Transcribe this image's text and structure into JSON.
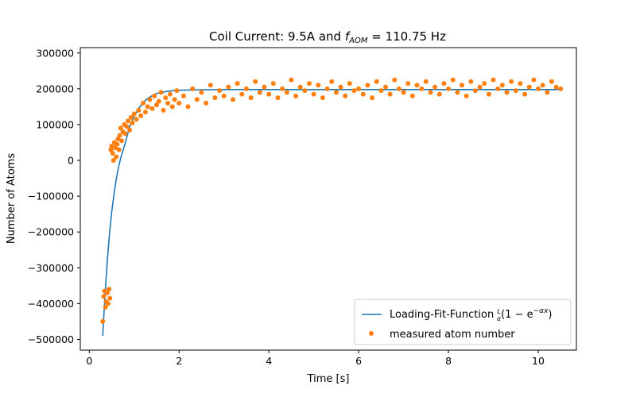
{
  "chart_data": {
    "type": "scatter",
    "title_main": "Coil Current: 9.5A and ",
    "title_var": "f",
    "title_sub": "AOM",
    "title_rest": " = 110.75 Hz",
    "xlabel": "Time [s]",
    "ylabel": "Number of Atoms",
    "xlim": [
      -0.2,
      10.85
    ],
    "ylim": [
      -530000,
      315000
    ],
    "xticks": [
      0,
      2,
      4,
      6,
      8,
      10
    ],
    "yticks": [
      -500000,
      -400000,
      -300000,
      -200000,
      -100000,
      0,
      100000,
      200000,
      300000
    ],
    "ytick_labels": [
      "−500000",
      "−400000",
      "−300000",
      "−200000",
      "−100000",
      "0",
      "100000",
      "200000",
      "300000"
    ],
    "grid": false,
    "legend_position": "lower right",
    "series": [
      {
        "name": "Loading-Fit-Function",
        "legend_prefix": "Loading-Fit-Function ",
        "legend_formula": "(1 − e",
        "legend_exp": "−αx",
        "legend_frac_num": "L",
        "legend_frac_den": "α",
        "kind": "line",
        "color": "#1f77b4",
        "x": [
          0.3,
          0.35,
          0.4,
          0.45,
          0.5,
          0.55,
          0.6,
          0.65,
          0.7,
          0.8,
          0.9,
          1.0,
          1.1,
          1.2,
          1.3,
          1.4,
          1.5,
          1.6,
          1.8,
          2.0,
          2.5,
          3.0,
          4.0,
          5.0,
          6.0,
          7.0,
          8.0,
          9.0,
          10.0,
          10.5
        ],
        "y": [
          -490000,
          -375000,
          -282000,
          -206000,
          -144000,
          -94000,
          -53000,
          -20000,
          7000,
          48000,
          95000,
          123000,
          145000,
          162000,
          173000,
          181000,
          187000,
          190000,
          194000,
          196000,
          197500,
          198000,
          198000,
          198000,
          198000,
          198000,
          198000,
          198000,
          198000,
          198000
        ]
      },
      {
        "name": "measured atom number",
        "kind": "scatter",
        "color": "#ff7f0e",
        "x": [
          0.3,
          0.32,
          0.34,
          0.36,
          0.38,
          0.4,
          0.42,
          0.44,
          0.46,
          0.48,
          0.5,
          0.52,
          0.54,
          0.56,
          0.58,
          0.6,
          0.62,
          0.64,
          0.66,
          0.68,
          0.7,
          0.72,
          0.75,
          0.78,
          0.8,
          0.83,
          0.86,
          0.9,
          0.93,
          0.96,
          1.0,
          1.05,
          1.1,
          1.15,
          1.2,
          1.25,
          1.3,
          1.35,
          1.4,
          1.45,
          1.5,
          1.55,
          1.6,
          1.65,
          1.7,
          1.75,
          1.8,
          1.85,
          1.9,
          1.95,
          2.0,
          2.1,
          2.2,
          2.3,
          2.4,
          2.5,
          2.6,
          2.7,
          2.8,
          2.9,
          3.0,
          3.1,
          3.2,
          3.3,
          3.4,
          3.5,
          3.6,
          3.7,
          3.8,
          3.9,
          4.0,
          4.1,
          4.2,
          4.3,
          4.4,
          4.5,
          4.6,
          4.7,
          4.8,
          4.9,
          5.0,
          5.1,
          5.2,
          5.3,
          5.4,
          5.5,
          5.6,
          5.7,
          5.8,
          5.9,
          6.0,
          6.1,
          6.2,
          6.3,
          6.4,
          6.5,
          6.6,
          6.7,
          6.8,
          6.9,
          7.0,
          7.1,
          7.2,
          7.3,
          7.4,
          7.5,
          7.6,
          7.7,
          7.8,
          7.9,
          8.0,
          8.1,
          8.2,
          8.3,
          8.4,
          8.5,
          8.6,
          8.7,
          8.8,
          8.9,
          9.0,
          9.1,
          9.2,
          9.3,
          9.4,
          9.5,
          9.6,
          9.7,
          9.8,
          9.9,
          10.0,
          10.1,
          10.2,
          10.3,
          10.4,
          10.5
        ],
        "y": [
          -450000,
          -380000,
          -365000,
          -410000,
          -395000,
          -370000,
          -400000,
          -360000,
          -385000,
          30000,
          40000,
          20000,
          0,
          50000,
          35000,
          10000,
          45000,
          60000,
          30000,
          70000,
          90000,
          55000,
          80000,
          100000,
          75000,
          95000,
          110000,
          85000,
          120000,
          105000,
          130000,
          115000,
          140000,
          125000,
          160000,
          135000,
          150000,
          170000,
          145000,
          180000,
          155000,
          165000,
          190000,
          140000,
          175000,
          160000,
          185000,
          150000,
          170000,
          195000,
          160000,
          180000,
          150000,
          200000,
          170000,
          190000,
          160000,
          210000,
          175000,
          195000,
          180000,
          205000,
          170000,
          215000,
          185000,
          200000,
          175000,
          220000,
          190000,
          205000,
          185000,
          215000,
          175000,
          200000,
          190000,
          225000,
          180000,
          205000,
          195000,
          215000,
          185000,
          210000,
          175000,
          200000,
          220000,
          190000,
          205000,
          180000,
          215000,
          195000,
          200000,
          185000,
          210000,
          175000,
          220000,
          195000,
          205000,
          185000,
          225000,
          200000,
          190000,
          215000,
          180000,
          210000,
          200000,
          220000,
          190000,
          205000,
          185000,
          215000,
          200000,
          225000,
          190000,
          210000,
          180000,
          220000,
          195000,
          205000,
          215000,
          185000,
          225000,
          200000,
          210000,
          190000,
          220000,
          195000,
          215000,
          185000,
          205000,
          225000,
          200000,
          210000,
          190000,
          220000,
          205000,
          200000
        ]
      }
    ]
  }
}
